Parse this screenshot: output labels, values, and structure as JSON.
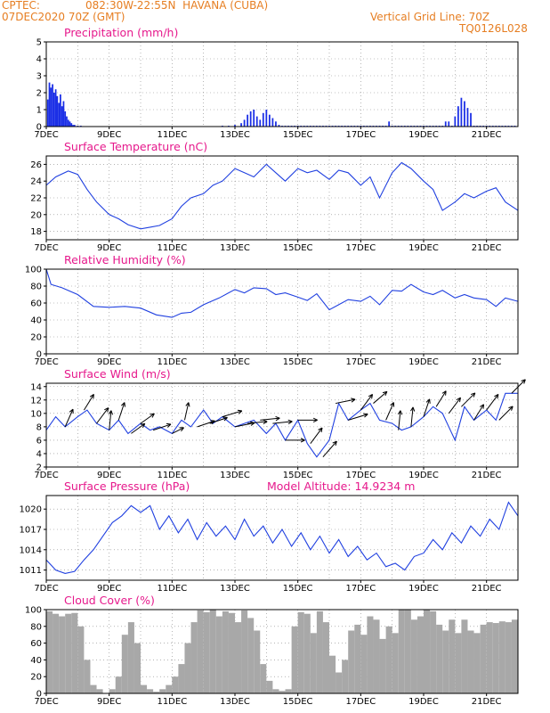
{
  "header": {
    "source": "CPTEC:",
    "location": "082:30W-22:55N  HAVANA (CUBA)",
    "run": "07DEC2020 70Z (GMT)",
    "grid_note": "Vertical Grid Line: 70Z",
    "code": "TQ0126L028"
  },
  "x_axis": {
    "ticks": [
      "7DEC",
      "9DEC",
      "11DEC",
      "13DEC",
      "15DEC",
      "17DEC",
      "19DEC",
      "21DEC"
    ],
    "range_days": [
      0,
      15
    ]
  },
  "colors": {
    "header": "#e67e22",
    "title": "#e6198c",
    "line": "#2040e0",
    "bar": "#a8a8a8"
  },
  "chart_data": [
    {
      "type": "bar",
      "title": "Precipitation (mm/h)",
      "ylim": [
        0,
        5
      ],
      "yticks": [
        0,
        1,
        2,
        3,
        4,
        5
      ],
      "grid": true,
      "x": [
        0.05,
        0.1,
        0.15,
        0.2,
        0.25,
        0.3,
        0.35,
        0.4,
        0.45,
        0.5,
        0.55,
        0.6,
        0.65,
        0.7,
        0.75,
        0.8,
        0.85,
        0.9,
        1.0,
        1.1,
        5.6,
        5.8,
        6.0,
        6.2,
        6.3,
        6.4,
        6.5,
        6.6,
        6.7,
        6.8,
        6.9,
        7.0,
        7.1,
        7.2,
        7.3,
        7.4,
        7.5,
        7.6,
        7.7,
        7.8,
        7.9,
        8.0,
        8.1,
        8.2,
        8.3,
        8.4,
        8.5,
        8.6,
        8.7,
        8.8,
        8.9,
        9.0,
        9.1,
        9.2,
        9.3,
        9.4,
        9.5,
        9.6,
        9.7,
        9.8,
        9.9,
        10.0,
        10.1,
        10.2,
        10.3,
        10.4,
        10.5,
        10.6,
        10.7,
        10.8,
        10.9,
        11.0,
        11.1,
        11.2,
        11.3,
        11.4,
        11.5,
        11.6,
        11.7,
        11.8,
        11.9,
        12.0,
        12.1,
        12.2,
        12.3,
        12.4,
        12.5,
        12.6,
        12.7,
        12.8,
        12.9,
        13.0,
        13.1,
        13.2,
        13.3,
        13.4,
        13.5,
        13.6,
        13.7,
        13.8,
        13.9,
        14.0,
        14.1,
        14.2,
        14.3,
        14.4,
        14.5,
        14.6,
        14.7,
        14.8,
        14.9
      ],
      "values": [
        1.6,
        2.6,
        2.3,
        2.5,
        2.0,
        2.2,
        1.8,
        1.4,
        1.9,
        1.2,
        1.5,
        0.9,
        0.6,
        0.4,
        0.3,
        0.2,
        0.1,
        0.1,
        0.05,
        0.05,
        0.05,
        0.05,
        0.1,
        0.2,
        0.4,
        0.7,
        0.9,
        1.0,
        0.6,
        0.4,
        0.8,
        1.0,
        0.7,
        0.5,
        0.3,
        0.1,
        0.05,
        0.05,
        0.05,
        0.05,
        0.05,
        0.05,
        0.05,
        0.05,
        0.05,
        0.05,
        0.05,
        0.05,
        0.05,
        0.05,
        0.05,
        0.05,
        0.05,
        0.05,
        0.05,
        0.05,
        0.05,
        0.05,
        0.05,
        0.05,
        0.05,
        0.05,
        0.05,
        0.05,
        0.05,
        0.05,
        0.05,
        0.05,
        0.05,
        0.05,
        0.3,
        0.05,
        0.05,
        0.05,
        0.05,
        0.05,
        0.05,
        0.05,
        0.05,
        0.05,
        0.05,
        0.05,
        0.05,
        0.05,
        0.05,
        0.05,
        0.05,
        0.05,
        0.3,
        0.3,
        0.05,
        0.6,
        1.2,
        1.7,
        1.5,
        1.1,
        0.8,
        0.05,
        0.05,
        0.05,
        0.05,
        0.05,
        0.05,
        0.05,
        0.05,
        0.05,
        0.05,
        0.05,
        0.05,
        0.05,
        0.05
      ]
    },
    {
      "type": "line",
      "title": "Surface Temperature (nC)",
      "ylim": [
        17,
        27
      ],
      "yticks": [
        18,
        20,
        22,
        24,
        26
      ],
      "grid": true,
      "x": [
        0,
        0.3,
        0.7,
        1.0,
        1.3,
        1.6,
        2.0,
        2.3,
        2.6,
        3.0,
        3.3,
        3.6,
        4.0,
        4.3,
        4.6,
        5.0,
        5.3,
        5.6,
        6.0,
        6.3,
        6.6,
        7.0,
        7.3,
        7.6,
        8.0,
        8.3,
        8.6,
        9.0,
        9.3,
        9.6,
        10.0,
        10.3,
        10.6,
        11.0,
        11.3,
        11.6,
        12.0,
        12.3,
        12.6,
        13.0,
        13.3,
        13.6,
        14.0,
        14.3,
        14.6,
        15.0
      ],
      "values": [
        23.5,
        24.5,
        25.2,
        24.8,
        23.0,
        21.5,
        20.0,
        19.5,
        18.8,
        18.3,
        18.5,
        18.7,
        19.5,
        21.0,
        22.0,
        22.5,
        23.5,
        24.0,
        25.5,
        25.0,
        24.5,
        26.0,
        25.0,
        24.0,
        25.5,
        25.0,
        25.3,
        24.2,
        25.3,
        25.0,
        23.5,
        24.5,
        22.0,
        25.0,
        26.2,
        25.5,
        24.0,
        23.0,
        20.5,
        21.5,
        22.5,
        22.0,
        22.8,
        23.2,
        21.5,
        20.5
      ]
    },
    {
      "type": "line",
      "title": "Relative Humidity (%)",
      "ylim": [
        0,
        100
      ],
      "yticks": [
        0,
        20,
        40,
        60,
        80,
        100
      ],
      "grid": true,
      "x": [
        0,
        0.15,
        0.5,
        1.0,
        1.5,
        2.0,
        2.5,
        3.0,
        3.5,
        4.0,
        4.3,
        4.6,
        5.0,
        5.5,
        6.0,
        6.3,
        6.6,
        7.0,
        7.3,
        7.6,
        8.0,
        8.3,
        8.6,
        9.0,
        9.3,
        9.6,
        10.0,
        10.3,
        10.6,
        11.0,
        11.3,
        11.6,
        12.0,
        12.3,
        12.6,
        13.0,
        13.3,
        13.6,
        14.0,
        14.3,
        14.6,
        15.0
      ],
      "values": [
        100,
        82,
        78,
        70,
        56,
        55,
        56,
        54,
        46,
        43,
        48,
        49,
        58,
        66,
        76,
        72,
        78,
        77,
        70,
        72,
        67,
        63,
        71,
        52,
        58,
        64,
        62,
        68,
        58,
        75,
        74,
        82,
        73,
        70,
        75,
        66,
        70,
        66,
        64,
        56,
        66,
        62
      ]
    },
    {
      "type": "line",
      "title": "Surface Wind (m/s)",
      "ylim": [
        2,
        14.5
      ],
      "yticks": [
        2,
        4,
        6,
        8,
        10,
        12,
        14
      ],
      "grid": true,
      "x": [
        0,
        0.3,
        0.6,
        1.0,
        1.3,
        1.6,
        2.0,
        2.3,
        2.6,
        3.0,
        3.3,
        3.6,
        4.0,
        4.3,
        4.6,
        5.0,
        5.3,
        5.6,
        6.0,
        6.3,
        6.6,
        7.0,
        7.3,
        7.6,
        8.0,
        8.3,
        8.6,
        9.0,
        9.3,
        9.6,
        10.0,
        10.3,
        10.6,
        11.0,
        11.3,
        11.6,
        12.0,
        12.3,
        12.6,
        13.0,
        13.3,
        13.6,
        14.0,
        14.3,
        14.6,
        15.0
      ],
      "values": [
        7.5,
        9.5,
        8.0,
        9.5,
        10.5,
        8.5,
        7.5,
        9.0,
        7.0,
        8.5,
        7.5,
        8.0,
        7.0,
        9.0,
        8.0,
        10.5,
        8.5,
        9.5,
        8.0,
        8.5,
        9.0,
        7.0,
        8.5,
        6.0,
        9.0,
        5.5,
        3.5,
        6.0,
        11.5,
        9.0,
        10.5,
        11.5,
        9.0,
        8.5,
        7.5,
        8.0,
        9.5,
        11.0,
        10.0,
        6.0,
        11.0,
        9.0,
        10.5,
        9.0,
        13.0,
        13.0
      ],
      "arrows": {
        "x": [
          0.6,
          1.2,
          1.6,
          2.0,
          2.3,
          2.7,
          3.0,
          3.4,
          4.0,
          4.4,
          4.8,
          5.2,
          5.6,
          6.0,
          6.4,
          6.8,
          7.2,
          7.6,
          8.0,
          8.4,
          8.8,
          9.2,
          9.6,
          10.0,
          10.4,
          10.8,
          11.2,
          11.6,
          12.0,
          12.4,
          12.8,
          13.2,
          13.6,
          14.0,
          14.4,
          14.8
        ],
        "u": [
          0.4,
          0.5,
          0.6,
          0.1,
          0.3,
          0.7,
          0.7,
          0.9,
          0.6,
          0.2,
          0.9,
          0.9,
          1.0,
          1.0,
          1.0,
          1.0,
          1.0,
          1.0,
          1.0,
          0.6,
          0.7,
          1.0,
          1.0,
          0.6,
          0.7,
          0.4,
          0.1,
          0.1,
          0.3,
          0.5,
          0.6,
          0.7,
          0.5,
          0.6,
          0.7,
          0.7
        ],
        "v": [
          0.9,
          0.8,
          0.8,
          1.0,
          0.9,
          0.5,
          0.5,
          0.3,
          0.3,
          0.9,
          0.3,
          0.3,
          0.3,
          0.2,
          0.1,
          0.1,
          0.1,
          0.0,
          0.0,
          0.8,
          0.8,
          0.2,
          0.3,
          0.8,
          0.6,
          0.9,
          1.0,
          1.0,
          0.9,
          0.8,
          0.8,
          0.7,
          0.8,
          0.8,
          0.7,
          0.7
        ]
      }
    },
    {
      "type": "line",
      "title": "Surface Pressure (hPa)",
      "annotation": "Model Altitude: 14.9234 m",
      "ylim": [
        1009.5,
        1022
      ],
      "yticks": [
        1011,
        1014,
        1017,
        1020
      ],
      "grid": true,
      "x": [
        0,
        0.3,
        0.6,
        0.9,
        1.2,
        1.5,
        1.8,
        2.1,
        2.4,
        2.7,
        3.0,
        3.3,
        3.6,
        3.9,
        4.2,
        4.5,
        4.8,
        5.1,
        5.4,
        5.7,
        6.0,
        6.3,
        6.6,
        6.9,
        7.2,
        7.5,
        7.8,
        8.1,
        8.4,
        8.7,
        9.0,
        9.3,
        9.6,
        9.9,
        10.2,
        10.5,
        10.8,
        11.1,
        11.4,
        11.7,
        12.0,
        12.3,
        12.6,
        12.9,
        13.2,
        13.5,
        13.8,
        14.1,
        14.4,
        14.7,
        15.0
      ],
      "values": [
        1012.5,
        1011.0,
        1010.5,
        1010.8,
        1012.5,
        1014.0,
        1016.0,
        1018.0,
        1019.0,
        1020.5,
        1019.5,
        1020.5,
        1017.0,
        1019.0,
        1016.5,
        1018.5,
        1015.5,
        1018.0,
        1016.0,
        1017.5,
        1015.5,
        1018.5,
        1016.0,
        1017.5,
        1015.0,
        1017.0,
        1014.5,
        1016.5,
        1014.0,
        1016.0,
        1013.5,
        1015.5,
        1013.0,
        1014.5,
        1012.5,
        1013.5,
        1011.5,
        1012.0,
        1011.0,
        1013.0,
        1013.5,
        1015.5,
        1014.0,
        1016.5,
        1015.0,
        1017.5,
        1016.0,
        1018.5,
        1017.0,
        1021.0,
        1019.0
      ]
    },
    {
      "type": "bar",
      "title": "Cloud Cover (%)",
      "ylim": [
        0,
        100
      ],
      "yticks": [
        0,
        20,
        40,
        60,
        80,
        100
      ],
      "grid": true,
      "x": [
        0.1,
        0.3,
        0.5,
        0.7,
        0.9,
        1.1,
        1.3,
        1.5,
        1.7,
        1.9,
        2.1,
        2.3,
        2.5,
        2.7,
        2.9,
        3.1,
        3.3,
        3.5,
        3.7,
        3.9,
        4.1,
        4.3,
        4.5,
        4.7,
        4.9,
        5.1,
        5.3,
        5.5,
        5.7,
        5.9,
        6.1,
        6.3,
        6.5,
        6.7,
        6.9,
        7.1,
        7.3,
        7.5,
        7.7,
        7.9,
        8.1,
        8.3,
        8.5,
        8.7,
        8.9,
        9.1,
        9.3,
        9.5,
        9.7,
        9.9,
        10.1,
        10.3,
        10.5,
        10.7,
        10.9,
        11.1,
        11.3,
        11.5,
        11.7,
        11.9,
        12.1,
        12.3,
        12.5,
        12.7,
        12.9,
        13.1,
        13.3,
        13.5,
        13.7,
        13.9,
        14.1,
        14.3,
        14.5,
        14.7,
        14.9
      ],
      "values": [
        98,
        95,
        92,
        95,
        96,
        80,
        40,
        10,
        5,
        0,
        5,
        20,
        70,
        85,
        60,
        10,
        5,
        2,
        5,
        10,
        20,
        35,
        60,
        85,
        99,
        97,
        100,
        92,
        98,
        96,
        85,
        99,
        90,
        75,
        35,
        15,
        5,
        3,
        5,
        80,
        97,
        95,
        72,
        98,
        85,
        45,
        25,
        40,
        75,
        82,
        70,
        92,
        88,
        65,
        80,
        72,
        100,
        100,
        88,
        92,
        100,
        98,
        82,
        75,
        88,
        72,
        88,
        75,
        72,
        82,
        85,
        84,
        86,
        85,
        88
      ]
    }
  ]
}
